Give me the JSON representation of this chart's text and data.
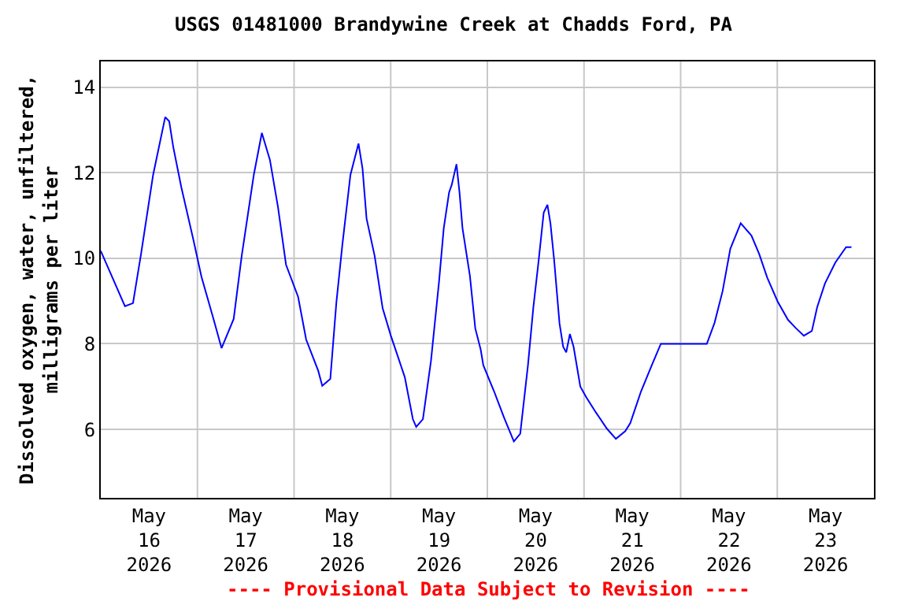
{
  "chart_data": {
    "type": "line",
    "title": "USGS 01481000 Brandywine Creek at Chadds Ford, PA",
    "ylabel": "Dissolved oxygen, water, unfiltered,\nmilligrams per liter",
    "annotations": [
      "---- Provisional Data Subject to Revision ----"
    ],
    "x": [
      "2026-05-16T00:00",
      "2026-05-16T06:00",
      "2026-05-16T08:00",
      "2026-05-16T10:00",
      "2026-05-16T13:00",
      "2026-05-16T16:00",
      "2026-05-16T17:00",
      "2026-05-16T18:00",
      "2026-05-16T20:00",
      "2026-05-16T23:00",
      "2026-05-17T01:00",
      "2026-05-17T04:00",
      "2026-05-17T06:00",
      "2026-05-17T09:00",
      "2026-05-17T11:00",
      "2026-05-17T14:00",
      "2026-05-17T16:00",
      "2026-05-17T18:00",
      "2026-05-17T20:00",
      "2026-05-17T22:00",
      "2026-05-18T01:00",
      "2026-05-18T03:00",
      "2026-05-18T06:00",
      "2026-05-18T07:00",
      "2026-05-18T09:00",
      "2026-05-18T10:30",
      "2026-05-18T12:00",
      "2026-05-18T14:00",
      "2026-05-18T16:00",
      "2026-05-18T17:00",
      "2026-05-18T18:00",
      "2026-05-18T20:00",
      "2026-05-18T22:00",
      "2026-05-19T00:00",
      "2026-05-19T01:30",
      "2026-05-19T03:30",
      "2026-05-19T05:30",
      "2026-05-19T06:20",
      "2026-05-19T08:00",
      "2026-05-19T10:00",
      "2026-05-19T12:00",
      "2026-05-19T13:10",
      "2026-05-19T14:30",
      "2026-05-19T15:10",
      "2026-05-19T16:20",
      "2026-05-19T17:05",
      "2026-05-19T17:50",
      "2026-05-19T19:40",
      "2026-05-19T21:00",
      "2026-05-19T22:20",
      "2026-05-19T23:00",
      "2026-05-20T01:40",
      "2026-05-20T04:10",
      "2026-05-20T06:35",
      "2026-05-20T08:10",
      "2026-05-20T10:05",
      "2026-05-20T11:25",
      "2026-05-20T12:45",
      "2026-05-20T14:00",
      "2026-05-20T14:55",
      "2026-05-20T15:40",
      "2026-05-20T16:35",
      "2026-05-20T17:55",
      "2026-05-20T18:50",
      "2026-05-20T19:35",
      "2026-05-20T20:30",
      "2026-05-20T21:25",
      "2026-05-20T23:05",
      "2026-05-21T00:30",
      "2026-05-21T03:00",
      "2026-05-21T05:40",
      "2026-05-21T07:55",
      "2026-05-21T10:15",
      "2026-05-21T11:30",
      "2026-05-21T14:10",
      "2026-05-21T16:50",
      "2026-05-21T19:05",
      "2026-05-22T06:30",
      "2026-05-22T08:25",
      "2026-05-22T10:25",
      "2026-05-22T12:20",
      "2026-05-22T14:55",
      "2026-05-22T17:35",
      "2026-05-22T19:30",
      "2026-05-22T21:30",
      "2026-05-23T00:05",
      "2026-05-23T02:40",
      "2026-05-23T04:35",
      "2026-05-23T06:35",
      "2026-05-23T08:35",
      "2026-05-23T09:55",
      "2026-05-23T11:50",
      "2026-05-23T14:25",
      "2026-05-23T17:05",
      "2026-05-23T18:25"
    ],
    "series": [
      {
        "color": "#0000ff",
        "values": [
          10.17,
          8.88,
          8.95,
          10.1,
          11.95,
          13.3,
          13.2,
          12.6,
          11.66,
          10.43,
          9.57,
          8.58,
          7.9,
          8.58,
          10.06,
          11.95,
          12.93,
          12.3,
          11.2,
          9.85,
          9.1,
          8.1,
          7.37,
          7.02,
          7.18,
          8.96,
          10.32,
          11.95,
          12.68,
          12.1,
          10.93,
          10.06,
          8.83,
          8.2,
          7.78,
          7.22,
          6.24,
          6.06,
          6.24,
          7.6,
          9.45,
          10.7,
          11.54,
          11.72,
          12.2,
          11.54,
          10.7,
          9.59,
          8.36,
          7.87,
          7.5,
          6.89,
          6.27,
          5.72,
          5.9,
          7.5,
          8.85,
          9.96,
          11.07,
          11.25,
          10.82,
          9.96,
          8.48,
          7.93,
          7.8,
          8.23,
          7.93,
          7.0,
          6.76,
          6.39,
          6.02,
          5.78,
          5.96,
          6.15,
          6.89,
          7.5,
          8.0,
          8.0,
          8.49,
          9.23,
          10.22,
          10.82,
          10.53,
          10.1,
          9.55,
          8.99,
          8.56,
          8.37,
          8.19,
          8.3,
          8.86,
          9.41,
          9.9,
          10.26,
          10.26
        ]
      }
    ],
    "xlim": [
      "2026-05-16T00:00",
      "2026-05-24T00:00"
    ],
    "xticks": [
      {
        "value": "2026-05-16T12:00",
        "label": "May\n16\n2026"
      },
      {
        "value": "2026-05-17T12:00",
        "label": "May\n17\n2026"
      },
      {
        "value": "2026-05-18T12:00",
        "label": "May\n18\n2026"
      },
      {
        "value": "2026-05-19T12:00",
        "label": "May\n19\n2026"
      },
      {
        "value": "2026-05-20T12:00",
        "label": "May\n20\n2026"
      },
      {
        "value": "2026-05-21T12:00",
        "label": "May\n21\n2026"
      },
      {
        "value": "2026-05-22T12:00",
        "label": "May\n22\n2026"
      },
      {
        "value": "2026-05-23T12:00",
        "label": "May\n23\n2026"
      },
      {
        "value": "2026-05-17T00:00",
        "label": null
      },
      {
        "value": "2026-05-18T00:00",
        "label": null
      },
      {
        "value": "2026-05-19T00:00",
        "label": null
      },
      {
        "value": "2026-05-20T00:00",
        "label": null
      },
      {
        "value": "2026-05-21T00:00",
        "label": null
      },
      {
        "value": "2026-05-22T00:00",
        "label": null
      },
      {
        "value": "2026-05-23T00:00",
        "label": null
      }
    ],
    "ylim": [
      4.4,
      14.6
    ],
    "yticks": [
      6,
      8,
      10,
      12,
      14
    ],
    "grid": true,
    "marker": "none",
    "line_style": "solid"
  }
}
